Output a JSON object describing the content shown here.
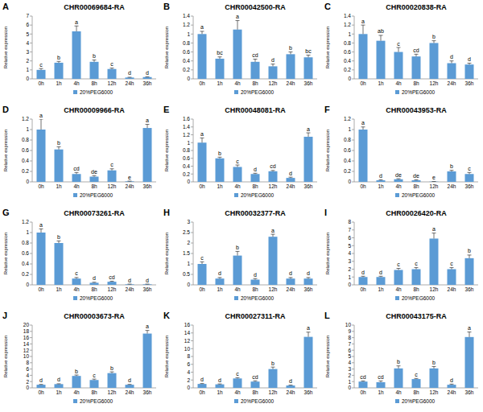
{
  "chart_data": [
    {
      "type": "bar",
      "label": "A",
      "title": "CHR00069684-RA",
      "y_label": "Relative expression",
      "categories": [
        "0h",
        "1h",
        "4h",
        "8h",
        "12h",
        "24h",
        "36h"
      ],
      "series": [
        {
          "name": "20%PEG6000",
          "color": "#5b9bd5",
          "values": [
            1.0,
            1.8,
            5.3,
            1.9,
            1.1,
            0.15,
            0.2
          ],
          "errors": [
            0.15,
            0.15,
            0.6,
            0.2,
            0.1,
            0.03,
            0.03
          ],
          "annotations": [
            "c",
            "b",
            "a",
            "b",
            "c",
            "d",
            "d"
          ]
        }
      ],
      "ylim": [
        0,
        7
      ],
      "yticks": [
        0,
        1,
        2,
        3,
        4,
        5,
        6,
        7
      ],
      "legend": "bottom"
    },
    {
      "type": "bar",
      "label": "B",
      "title": "CHR00042500-RA",
      "y_label": "Relative expression",
      "categories": [
        "0h",
        "1h",
        "4h",
        "8h",
        "12h",
        "24h",
        "36h"
      ],
      "series": [
        {
          "name": "20%PEG6000",
          "color": "#5b9bd5",
          "values": [
            1.0,
            0.45,
            1.1,
            0.38,
            0.28,
            0.55,
            0.48
          ],
          "errors": [
            0.06,
            0.04,
            0.2,
            0.06,
            0.05,
            0.05,
            0.05
          ],
          "annotations": [
            "a",
            "bc",
            "a",
            "cd",
            "d",
            "b",
            "bc"
          ]
        }
      ],
      "ylim": [
        0,
        1.4
      ],
      "yticks": [
        0,
        0.2,
        0.4,
        0.6,
        0.8,
        1,
        1.2,
        1.4
      ],
      "legend": "bottom"
    },
    {
      "type": "bar",
      "label": "C",
      "title": "CHR00020838-RA",
      "y_label": "Relative expression",
      "categories": [
        "0h",
        "1h",
        "4h",
        "8h",
        "12h",
        "24h",
        "36h"
      ],
      "series": [
        {
          "name": "20%PEG6000",
          "color": "#5b9bd5",
          "values": [
            1.0,
            0.85,
            0.6,
            0.5,
            0.8,
            0.35,
            0.32
          ],
          "errors": [
            0.2,
            0.12,
            0.1,
            0.05,
            0.05,
            0.05,
            0.03
          ],
          "annotations": [
            "a",
            "ab",
            "c",
            "cd",
            "b",
            "d",
            "d"
          ]
        }
      ],
      "ylim": [
        0,
        1.4
      ],
      "yticks": [
        0,
        0.2,
        0.4,
        0.6,
        0.8,
        1,
        1.2,
        1.4
      ],
      "legend": "bottom"
    },
    {
      "type": "bar",
      "label": "D",
      "title": "CHR00009966-RA",
      "y_label": "Relative expression",
      "categories": [
        "0h",
        "1h",
        "4h",
        "8h",
        "12h",
        "24h",
        "36h"
      ],
      "series": [
        {
          "name": "20%PEG6000",
          "color": "#5b9bd5",
          "values": [
            1.0,
            0.62,
            0.15,
            0.1,
            0.22,
            0.01,
            1.03
          ],
          "errors": [
            0.2,
            0.05,
            0.03,
            0.02,
            0.03,
            0.005,
            0.07
          ],
          "annotations": [
            "a",
            "b",
            "cd",
            "de",
            "c",
            "e",
            "a"
          ]
        }
      ],
      "ylim": [
        0,
        1.2
      ],
      "yticks": [
        0,
        0.2,
        0.4,
        0.6,
        0.8,
        1,
        1.2
      ],
      "legend": "bottom"
    },
    {
      "type": "bar",
      "label": "E",
      "title": "CHR00048081-RA",
      "y_label": "Relative expression",
      "categories": [
        "0h",
        "1h",
        "4h",
        "8h",
        "12h",
        "24h",
        "36h"
      ],
      "series": [
        {
          "name": "20%PEG6000",
          "color": "#5b9bd5",
          "values": [
            1.0,
            0.6,
            0.38,
            0.2,
            0.27,
            0.1,
            1.15
          ],
          "errors": [
            0.12,
            0.03,
            0.05,
            0.02,
            0.02,
            0.02,
            0.1
          ],
          "annotations": [
            "a",
            "b",
            "c",
            "d",
            "cd",
            "d",
            "a"
          ]
        }
      ],
      "ylim": [
        0,
        1.6
      ],
      "yticks": [
        0,
        0.2,
        0.4,
        0.6,
        0.8,
        1,
        1.2,
        1.4,
        1.6
      ],
      "legend": "bottom"
    },
    {
      "type": "bar",
      "label": "F",
      "title": "CHR00043953-RA",
      "y_label": "Relative expression",
      "categories": [
        "0h",
        "1h",
        "4h",
        "8h",
        "12h",
        "24h",
        "36h"
      ],
      "series": [
        {
          "name": "20%PEG6000",
          "color": "#5b9bd5",
          "values": [
            1.0,
            0.03,
            0.05,
            0.03,
            0.005,
            0.2,
            0.15
          ],
          "errors": [
            0.05,
            0.01,
            0.01,
            0.01,
            0.002,
            0.02,
            0.03
          ],
          "annotations": [
            "a",
            "d",
            "de",
            "de",
            "e",
            "b",
            "c"
          ]
        }
      ],
      "ylim": [
        0,
        1.2
      ],
      "yticks": [
        0,
        0.2,
        0.4,
        0.6,
        0.8,
        1,
        1.2
      ],
      "legend": "bottom"
    },
    {
      "type": "bar",
      "label": "G",
      "title": "CHR00073261-RA",
      "y_label": "Relative expression",
      "categories": [
        "0h",
        "1h",
        "4h",
        "8h",
        "12h",
        "24h",
        "36h"
      ],
      "series": [
        {
          "name": "20%PEG6000",
          "color": "#5b9bd5",
          "values": [
            1.0,
            0.8,
            0.12,
            0.04,
            0.06,
            0.01,
            0.01
          ],
          "errors": [
            0.07,
            0.04,
            0.02,
            0.01,
            0.01,
            0.005,
            0.005
          ],
          "annotations": [
            "a",
            "b",
            "c",
            "d",
            "cd",
            "d",
            "d"
          ]
        }
      ],
      "ylim": [
        0,
        1.2
      ],
      "yticks": [
        0,
        0.2,
        0.4,
        0.6,
        0.8,
        1,
        1.2
      ],
      "legend": "bottom"
    },
    {
      "type": "bar",
      "label": "H",
      "title": "CHR00032377-RA",
      "y_label": "Relative expression",
      "categories": [
        "0h",
        "1h",
        "4h",
        "8h",
        "12h",
        "24h",
        "36h"
      ],
      "series": [
        {
          "name": "20%PEG6000",
          "color": "#5b9bd5",
          "values": [
            1.0,
            0.3,
            1.4,
            0.25,
            2.3,
            0.3,
            0.3
          ],
          "errors": [
            0.1,
            0.05,
            0.2,
            0.05,
            0.12,
            0.05,
            0.05
          ],
          "annotations": [
            "c",
            "d",
            "b",
            "d",
            "a",
            "d",
            "d"
          ]
        }
      ],
      "ylim": [
        0,
        3
      ],
      "yticks": [
        0,
        0.5,
        1,
        1.5,
        2,
        2.5,
        3
      ],
      "legend": "bottom"
    },
    {
      "type": "bar",
      "label": "I",
      "title": "CHR00026420-RA",
      "y_label": "Relative expression",
      "categories": [
        "0h",
        "1h",
        "4h",
        "8h",
        "12h",
        "24h",
        "36h"
      ],
      "series": [
        {
          "name": "20%PEG6000",
          "color": "#5b9bd5",
          "values": [
            1.0,
            1.0,
            1.9,
            2.0,
            5.9,
            2.0,
            3.4
          ],
          "errors": [
            0.1,
            0.1,
            0.2,
            0.2,
            0.7,
            0.2,
            0.4
          ],
          "annotations": [
            "d",
            "d",
            "c",
            "c",
            "a",
            "c",
            "b"
          ]
        }
      ],
      "ylim": [
        0,
        8
      ],
      "yticks": [
        0,
        1,
        2,
        3,
        4,
        5,
        6,
        7,
        8
      ],
      "legend": "bottom"
    },
    {
      "type": "bar",
      "label": "J",
      "title": "CHR00003673-RA",
      "y_label": "Relative expression",
      "categories": [
        "0h",
        "1h",
        "4h",
        "8h",
        "12h",
        "24h",
        "36h"
      ],
      "series": [
        {
          "name": "20%PEG6000",
          "color": "#5b9bd5",
          "values": [
            1.0,
            1.2,
            3.8,
            2.5,
            4.7,
            1.0,
            17.3
          ],
          "errors": [
            0.1,
            0.1,
            0.3,
            0.3,
            0.4,
            0.1,
            1.0
          ],
          "annotations": [
            "d",
            "d",
            "b",
            "c",
            "b",
            "d",
            "a"
          ]
        }
      ],
      "ylim": [
        0,
        20
      ],
      "yticks": [
        0,
        2,
        4,
        6,
        8,
        10,
        12,
        14,
        16,
        18,
        20
      ],
      "legend": "bottom"
    },
    {
      "type": "bar",
      "label": "K",
      "title": "CHR00027311-RA",
      "y_label": "Relative expression",
      "categories": [
        "0h",
        "1h",
        "4h",
        "8h",
        "12h",
        "24h",
        "36h"
      ],
      "series": [
        {
          "name": "20%PEG6000",
          "color": "#5b9bd5",
          "values": [
            1.0,
            0.9,
            2.4,
            1.6,
            4.8,
            0.6,
            13
          ],
          "errors": [
            0.1,
            0.1,
            0.2,
            0.2,
            0.5,
            0.1,
            1.2
          ],
          "annotations": [
            "d",
            "d",
            "c",
            "cd",
            "b",
            "d",
            "a"
          ]
        }
      ],
      "ylim": [
        0,
        16
      ],
      "yticks": [
        0,
        2,
        4,
        6,
        8,
        10,
        12,
        14,
        16
      ],
      "legend": "bottom"
    },
    {
      "type": "bar",
      "label": "L",
      "title": "CHR00043175-RA",
      "y_label": "Relative expression",
      "categories": [
        "0h",
        "1h",
        "4h",
        "8h",
        "12h",
        "24h",
        "36h"
      ],
      "series": [
        {
          "name": "20%PEG6000",
          "color": "#5b9bd5",
          "values": [
            1.0,
            0.9,
            3.1,
            1.4,
            3.1,
            0.5,
            8.1
          ],
          "errors": [
            0.1,
            0.2,
            0.4,
            0.1,
            0.3,
            0.1,
            0.8
          ],
          "annotations": [
            "cd",
            "cd",
            "b",
            "c",
            "b",
            "d",
            "a"
          ]
        }
      ],
      "ylim": [
        0,
        10
      ],
      "yticks": [
        0,
        1,
        2,
        3,
        4,
        5,
        6,
        7,
        8,
        9,
        10
      ],
      "legend": "bottom"
    }
  ]
}
